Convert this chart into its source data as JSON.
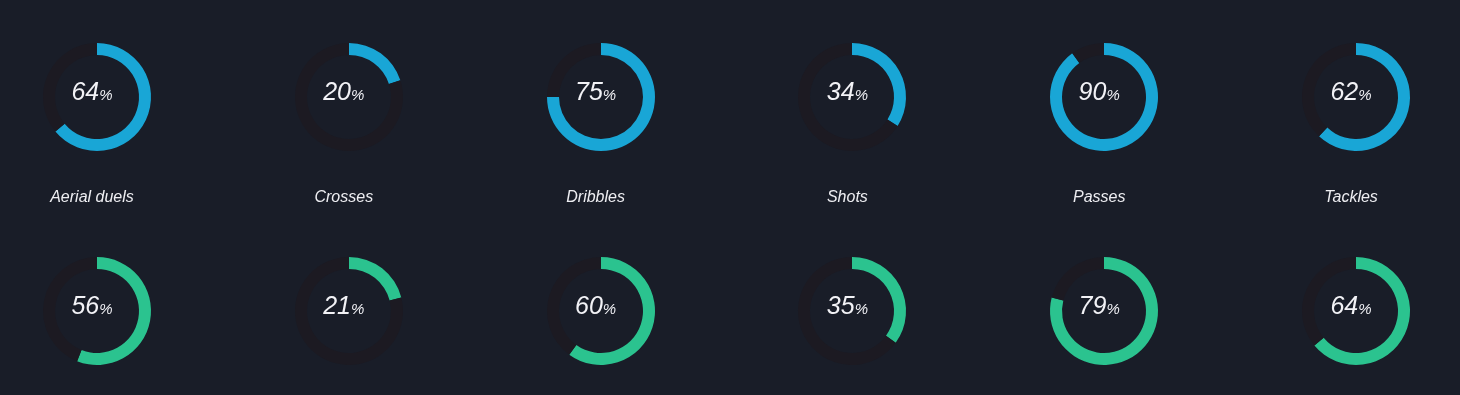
{
  "chart_data": [
    {
      "type": "donut",
      "title": "Aerial duels",
      "categories": [
        null,
        null
      ],
      "values": [
        64,
        36
      ],
      "colors": [
        "#19a6d6",
        "#1c1a22"
      ],
      "annotations": [
        "64%"
      ]
    },
    {
      "type": "donut",
      "title": "Crosses",
      "categories": [
        null,
        null
      ],
      "values": [
        20,
        80
      ],
      "colors": [
        "#19a6d6",
        "#1c1a22"
      ],
      "annotations": [
        "20%"
      ]
    },
    {
      "type": "donut",
      "title": "Dribbles",
      "categories": [
        null,
        null
      ],
      "values": [
        75,
        25
      ],
      "colors": [
        "#19a6d6",
        "#1c1a22"
      ],
      "annotations": [
        "75%"
      ]
    },
    {
      "type": "donut",
      "title": "Shots",
      "categories": [
        null,
        null
      ],
      "values": [
        34,
        66
      ],
      "colors": [
        "#19a6d6",
        "#1c1a22"
      ],
      "annotations": [
        "34%"
      ]
    },
    {
      "type": "donut",
      "title": "Passes",
      "categories": [
        null,
        null
      ],
      "values": [
        90,
        10
      ],
      "colors": [
        "#19a6d6",
        "#1c1a22"
      ],
      "annotations": [
        "90%"
      ]
    },
    {
      "type": "donut",
      "title": "Tackles",
      "categories": [
        null,
        null
      ],
      "values": [
        62,
        38
      ],
      "colors": [
        "#19a6d6",
        "#1c1a22"
      ],
      "annotations": [
        "62%"
      ]
    },
    {
      "type": "donut",
      "categories": [
        null,
        null
      ],
      "values": [
        56,
        44
      ],
      "colors": [
        "#2bc38f",
        "#1c1a22"
      ],
      "annotations": [
        "56%"
      ]
    },
    {
      "type": "donut",
      "categories": [
        null,
        null
      ],
      "values": [
        21,
        79
      ],
      "colors": [
        "#2bc38f",
        "#1c1a22"
      ],
      "annotations": [
        "21%"
      ]
    },
    {
      "type": "donut",
      "categories": [
        null,
        null
      ],
      "values": [
        60,
        40
      ],
      "colors": [
        "#2bc38f",
        "#1c1a22"
      ],
      "annotations": [
        "60%"
      ]
    },
    {
      "type": "donut",
      "categories": [
        null,
        null
      ],
      "values": [
        35,
        65
      ],
      "colors": [
        "#2bc38f",
        "#1c1a22"
      ],
      "annotations": [
        "35%"
      ]
    },
    {
      "type": "donut",
      "categories": [
        null,
        null
      ],
      "values": [
        79,
        21
      ],
      "colors": [
        "#2bc38f",
        "#1c1a22"
      ],
      "annotations": [
        "79%"
      ]
    },
    {
      "type": "donut",
      "categories": [
        null,
        null
      ],
      "values": [
        64,
        36
      ],
      "colors": [
        "#2bc38f",
        "#1c1a22"
      ],
      "annotations": [
        "64%"
      ]
    }
  ]
}
